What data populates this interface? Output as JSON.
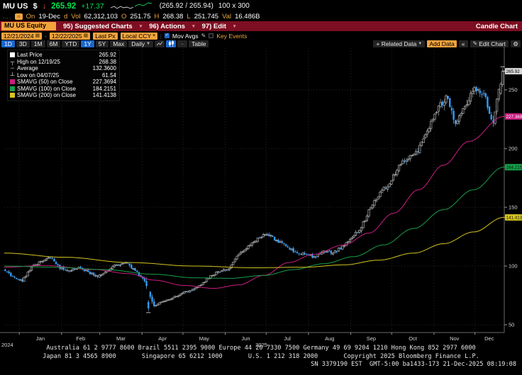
{
  "header": {
    "ticker": "MU US",
    "currency": "$",
    "price": "265.92",
    "change": "+17.37",
    "bid_ask": "(265.92 / 265.94)",
    "lot_size": "100 x 300",
    "quote_row": {
      "on_label": "On",
      "date": "19-Dec",
      "session": "d",
      "vol_label": "Vol",
      "volume": "62,312,103",
      "open_label": "O",
      "open": "251.75",
      "high_label": "H",
      "high": "268.38",
      "low_label": "L",
      "low": "251.745",
      "val_label": "Val",
      "value_traded": "16.486B"
    }
  },
  "menubar": {
    "security": "MU US Equity",
    "items": [
      {
        "label": "95) Suggested Charts"
      },
      {
        "label": "96) Actions"
      },
      {
        "label": "97) Edit"
      }
    ],
    "right_label": "Candle Chart"
  },
  "controls": {
    "date_from": "12/21/2024",
    "date_to": "12/22/2025",
    "price_field": "Last Px",
    "currency_mode": "Local CCY",
    "mov_avgs_label": "Mov Avgs",
    "key_events_label": "Key Events"
  },
  "toolbar": {
    "periods": [
      "1D",
      "3D",
      "1M",
      "6M",
      "YTD",
      "1Y",
      "5Y",
      "Max"
    ],
    "selected_periods": [
      "1D",
      "1Y"
    ],
    "interval": "Daily",
    "table_label": "Table",
    "related_data_label": "+ Related Data",
    "add_data_label": "Add Data",
    "back_label": "«",
    "edit_chart_label": "Edit Chart"
  },
  "legend": {
    "rows": [
      {
        "marker": "square",
        "color": "#ffffff",
        "label": "Last Price",
        "value": "265.92"
      },
      {
        "marker": "high",
        "color": "#dddddd",
        "label": "High on 12/19/25",
        "value": "268.38"
      },
      {
        "marker": "avg",
        "color": "#dddddd",
        "label": "Average",
        "value": "132.3600"
      },
      {
        "marker": "low",
        "color": "#dddddd",
        "label": "Low on 04/07/25",
        "value": "61.54"
      },
      {
        "marker": "square",
        "color": "#cb1d82",
        "label": "SMAVG (50) on Close",
        "value": "227.3694"
      },
      {
        "marker": "square",
        "color": "#16a04a",
        "label": "SMAVG (100) on Close",
        "value": "184.2151"
      },
      {
        "marker": "square",
        "color": "#d6c51e",
        "label": "SMAVG (200) on Close",
        "value": "141.4138"
      }
    ]
  },
  "chart_data": {
    "type": "candlestick",
    "security": "MU US Equity",
    "interval": "Daily",
    "date_range": [
      "12/21/2024",
      "12/22/2025"
    ],
    "x_axis": {
      "month_labels": [
        "Jan",
        "Feb",
        "Mar",
        "Apr",
        "May",
        "Jun",
        "Jul",
        "Aug",
        "Sep",
        "Oct",
        "Nov",
        "Dec"
      ],
      "year_labels": [
        "2024",
        "2025"
      ]
    },
    "y_axis": {
      "ticks": [
        50,
        100,
        150,
        200,
        250
      ],
      "visible_range": [
        45,
        280
      ]
    },
    "stats": {
      "last_price": 265.92,
      "high": 268.38,
      "high_date": "12/19/25",
      "low": 61.54,
      "low_date": "04/07/25",
      "average": 132.36
    },
    "colors": {
      "up_candle": "#b8b8b8",
      "down_candle": "#2f9dff",
      "grid": "#262626"
    },
    "start_price": 97,
    "weekly_closes": [
      91,
      87,
      99,
      104,
      107,
      98,
      96,
      99,
      95,
      91,
      96,
      101,
      103,
      96,
      87,
      66,
      70,
      73,
      77,
      79,
      84,
      92,
      95,
      98,
      110,
      117,
      124,
      127,
      122,
      117,
      112,
      110,
      108,
      113,
      111,
      117,
      124,
      133,
      150,
      163,
      170,
      186,
      191,
      197,
      215,
      231,
      245,
      221,
      236,
      252,
      247,
      222,
      265.92
    ],
    "moving_averages": [
      {
        "name": "SMAVG (50) on Close",
        "value": 227.3694,
        "color": "#cb1d82",
        "anchors": [
          [
            0,
            99
          ],
          [
            0.08,
            100.5
          ],
          [
            0.18,
            97
          ],
          [
            0.25,
            93.5
          ],
          [
            0.3,
            88
          ],
          [
            0.36,
            83.5
          ],
          [
            0.42,
            81
          ],
          [
            0.47,
            84
          ],
          [
            0.52,
            92
          ],
          [
            0.57,
            103
          ],
          [
            0.62,
            110
          ],
          [
            0.68,
            118
          ],
          [
            0.73,
            128
          ],
          [
            0.78,
            145
          ],
          [
            0.83,
            165
          ],
          [
            0.88,
            186
          ],
          [
            0.93,
            206
          ],
          [
            1,
            227.37
          ]
        ]
      },
      {
        "name": "SMAVG (100) on Close",
        "value": 184.2151,
        "color": "#16a04a",
        "anchors": [
          [
            0,
            100
          ],
          [
            0.1,
            99
          ],
          [
            0.2,
            97
          ],
          [
            0.3,
            93
          ],
          [
            0.38,
            90
          ],
          [
            0.45,
            89.5
          ],
          [
            0.52,
            92
          ],
          [
            0.58,
            97
          ],
          [
            0.64,
            102
          ],
          [
            0.7,
            108
          ],
          [
            0.76,
            118
          ],
          [
            0.82,
            132
          ],
          [
            0.88,
            148
          ],
          [
            0.94,
            165
          ],
          [
            1,
            184.22
          ]
        ]
      },
      {
        "name": "SMAVG (200) on Close",
        "value": 141.4138,
        "color": "#d6c51e",
        "anchors": [
          [
            0,
            111
          ],
          [
            0.12,
            107.5
          ],
          [
            0.25,
            103
          ],
          [
            0.38,
            100
          ],
          [
            0.5,
            98.5
          ],
          [
            0.6,
            99
          ],
          [
            0.68,
            101
          ],
          [
            0.75,
            105
          ],
          [
            0.82,
            111
          ],
          [
            0.88,
            119
          ],
          [
            0.94,
            129
          ],
          [
            1,
            141.41
          ]
        ]
      }
    ],
    "axis_badges": [
      {
        "value": "265.92",
        "price": 265.92,
        "bg": "#d8d8d8",
        "fg": "#000000"
      },
      {
        "value": "227.3694",
        "price": 227.3694,
        "bg": "#cb1d82",
        "fg": "#ffffff"
      },
      {
        "value": "184.2151",
        "price": 184.2151,
        "bg": "#16a04a",
        "fg": "#00120a"
      },
      {
        "value": "141.4138",
        "price": 141.4138,
        "bg": "#d6c51e",
        "fg": "#1a1600"
      }
    ]
  },
  "footer": {
    "line1": "Australia 61 2 9777 8600 Brazil 5511 2395 9000 Europe 44 20 7330 7500 Germany 49 69 9204 1210 Hong Kong 852 2977 6000",
    "line2": "Japan 81 3 4565 8900       Singapore 65 6212 1000       U.S. 1 212 318 2000       Copyright 2025 Bloomberg Finance L.P.",
    "line3": "SN 3379190 EST  GMT-5:00 ba1433-173 21-Dec-2025 08:19:08"
  }
}
